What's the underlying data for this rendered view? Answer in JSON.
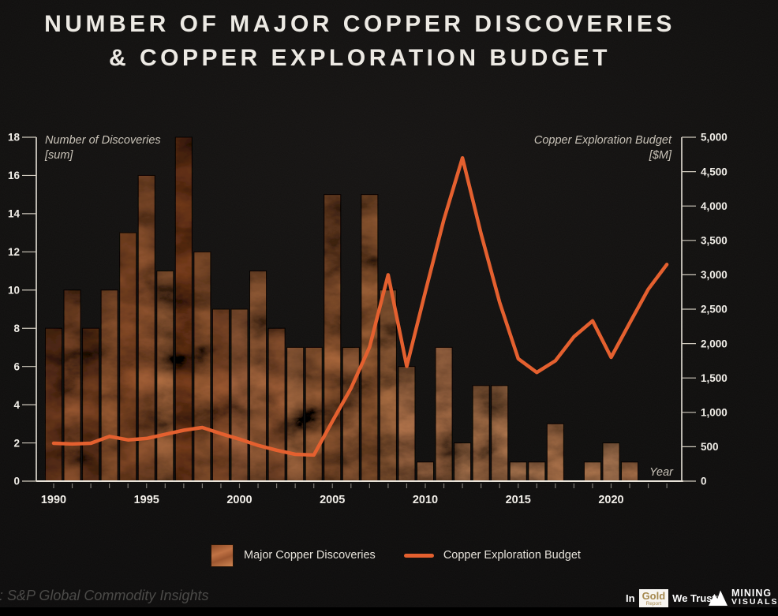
{
  "title": {
    "line1": "NUMBER OF MAJOR COPPER DISCOVERIES",
    "line2": "& COPPER EXPLORATION BUDGET"
  },
  "chart_data": {
    "type": "bar+line",
    "x": [
      1990,
      1991,
      1992,
      1993,
      1994,
      1995,
      1996,
      1997,
      1998,
      1999,
      2000,
      2001,
      2002,
      2003,
      2004,
      2005,
      2006,
      2007,
      2008,
      2009,
      2010,
      2011,
      2012,
      2013,
      2014,
      2015,
      2016,
      2017,
      2018,
      2019,
      2020,
      2021,
      2022,
      2023
    ],
    "series": [
      {
        "name": "Major Copper Discoveries",
        "type": "bar",
        "axis": "left",
        "values": [
          8,
          10,
          8,
          10,
          13,
          16,
          11,
          18,
          12,
          9,
          9,
          11,
          8,
          7,
          7,
          15,
          7,
          15,
          10,
          6,
          1,
          7,
          2,
          5,
          5,
          1,
          1,
          3,
          0,
          1,
          2,
          1,
          null,
          null
        ]
      },
      {
        "name": "Copper Exploration Budget",
        "type": "line",
        "axis": "right",
        "values": [
          550,
          540,
          550,
          650,
          600,
          620,
          680,
          740,
          780,
          690,
          610,
          520,
          450,
          390,
          380,
          870,
          1350,
          1950,
          3000,
          1670,
          2750,
          3800,
          4700,
          3600,
          2600,
          1780,
          1580,
          1750,
          2100,
          2330,
          1800,
          2300,
          2790,
          3150
        ]
      }
    ],
    "left_axis": {
      "title_line1": "Number of Discoveries",
      "title_line2": "[sum]",
      "min": 0,
      "max": 18,
      "tick_step": 2
    },
    "right_axis": {
      "title_line1": "Copper Exploration Budget",
      "title_line2": "[$M]",
      "min": 0,
      "max": 5000,
      "tick_step": 500
    },
    "x_axis": {
      "title": "Year",
      "major_ticks": [
        1990,
        1995,
        2000,
        2005,
        2010,
        2015,
        2020
      ]
    },
    "grid": false,
    "legend_position": "bottom"
  },
  "legend": {
    "discoveries_label": "Major Copper Discoveries",
    "budget_label": "Copper Exploration Budget"
  },
  "footer": {
    "source": "Source: S&P Global Commodity Insights",
    "igwt": {
      "in": "In",
      "gold": "Gold",
      "report": "Report",
      "we_trust": "We Trust",
      "tm_mark": "'"
    },
    "mining_visuals": {
      "line1": "MINING",
      "line2": "VISUALS"
    }
  },
  "colors": {
    "background": "#0d0c0b",
    "budget_line": "#e4602f",
    "axis_line": "#e7e2d8",
    "tick_text": "#f1eee8",
    "axis_title_text": "#c9c3b8",
    "title_text": "#edeae4",
    "source_text": "#4b4a48",
    "gold_accent": "#a5894e",
    "bar_copper_light": "#dc9463",
    "bar_copper_dark": "#8a4a28"
  }
}
